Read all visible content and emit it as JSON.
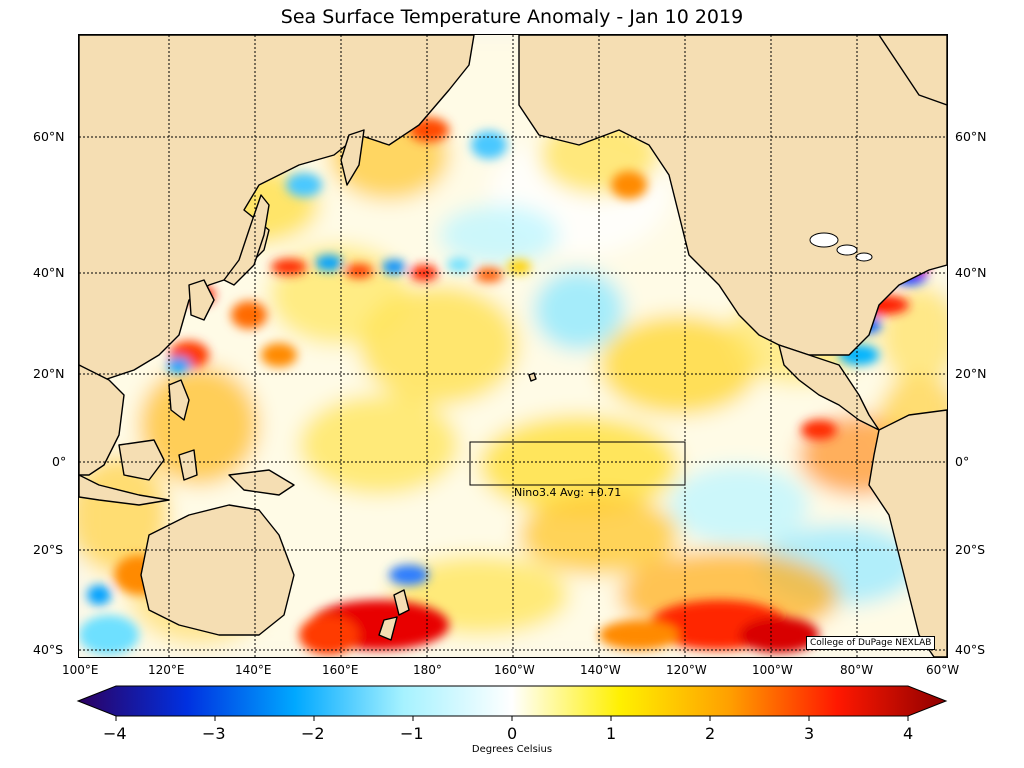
{
  "title": "Sea Surface Temperature Anomaly - Jan 10 2019",
  "nino": {
    "label": "Nino3.4 Avg: +0.71"
  },
  "credit": "College of DuPage NEXLAB",
  "lat_labels": [
    "60°N",
    "40°N",
    "20°N",
    "0°",
    "20°S",
    "40°S"
  ],
  "lon_labels": [
    "100°E",
    "120°E",
    "140°E",
    "160°E",
    "180°",
    "160°W",
    "140°W",
    "120°W",
    "100°W",
    "80°W",
    "60°W"
  ],
  "colorbar": {
    "ticks": [
      "−4",
      "−3",
      "−2",
      "−1",
      "0",
      "1",
      "2",
      "3",
      "4"
    ],
    "label": "Degrees Celsius",
    "min": -4,
    "max": 4,
    "stops": [
      "#2d0060",
      "#0030e0",
      "#00a8ff",
      "#a6f2ff",
      "#ffffff",
      "#fff000",
      "#ffa000",
      "#ff1800",
      "#8e0000"
    ]
  },
  "colors": {
    "land": "#f5deb3",
    "coast": "#000000",
    "grid": "#000000"
  }
}
